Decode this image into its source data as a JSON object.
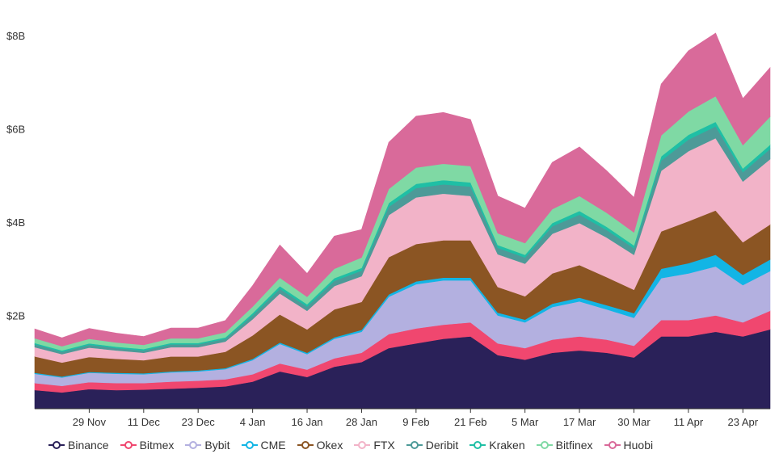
{
  "chart_data": {
    "type": "area",
    "stacked": true,
    "title": "",
    "xlabel": "",
    "ylabel": "",
    "ylim": [
      0,
      8500000000
    ],
    "y_ticks": [
      {
        "value": 2000000000,
        "label": "$2B"
      },
      {
        "value": 4000000000,
        "label": "$4B"
      },
      {
        "value": 6000000000,
        "label": "$6B"
      },
      {
        "value": 8000000000,
        "label": "$8B"
      }
    ],
    "x_ticks": [
      "29 Nov",
      "11 Dec",
      "23 Dec",
      "4 Jan",
      "16 Jan",
      "28 Jan",
      "9 Feb",
      "21 Feb",
      "5 Mar",
      "17 Mar",
      "30 Mar",
      "11 Apr",
      "23 Apr"
    ],
    "x": [
      "17 Nov",
      "23 Nov",
      "29 Nov",
      "5 Dec",
      "11 Dec",
      "17 Dec",
      "23 Dec",
      "29 Dec",
      "4 Jan",
      "10 Jan",
      "16 Jan",
      "22 Jan",
      "28 Jan",
      "3 Feb",
      "9 Feb",
      "15 Feb",
      "21 Feb",
      "27 Feb",
      "5 Mar",
      "11 Mar",
      "17 Mar",
      "23 Mar",
      "30 Mar",
      "5 Apr",
      "11 Apr",
      "17 Apr",
      "23 Apr",
      "29 Apr"
    ],
    "grid": false,
    "legend_position": "bottom",
    "series": [
      {
        "name": "Binance",
        "color": "#2a2159",
        "values": [
          0.4,
          0.35,
          0.42,
          0.4,
          0.41,
          0.43,
          0.45,
          0.48,
          0.58,
          0.8,
          0.68,
          0.9,
          1.0,
          1.3,
          1.4,
          1.5,
          1.55,
          1.15,
          1.05,
          1.2,
          1.25,
          1.2,
          1.1,
          1.55,
          1.55,
          1.65,
          1.55,
          1.7
        ]
      },
      {
        "name": "Bitmex",
        "color": "#f0476f",
        "values": [
          0.15,
          0.14,
          0.15,
          0.15,
          0.14,
          0.15,
          0.15,
          0.15,
          0.16,
          0.17,
          0.16,
          0.18,
          0.2,
          0.3,
          0.32,
          0.3,
          0.3,
          0.25,
          0.25,
          0.28,
          0.3,
          0.28,
          0.25,
          0.35,
          0.35,
          0.35,
          0.3,
          0.4
        ]
      },
      {
        "name": "Bybit",
        "color": "#b3b0e0",
        "values": [
          0.2,
          0.18,
          0.2,
          0.2,
          0.19,
          0.2,
          0.2,
          0.22,
          0.3,
          0.42,
          0.33,
          0.42,
          0.45,
          0.8,
          0.95,
          0.95,
          0.9,
          0.6,
          0.55,
          0.7,
          0.75,
          0.65,
          0.6,
          0.9,
          1.0,
          1.05,
          0.8,
          0.85
        ]
      },
      {
        "name": "CME",
        "color": "#12b5e5",
        "values": [
          0.02,
          0.02,
          0.02,
          0.02,
          0.02,
          0.02,
          0.02,
          0.02,
          0.03,
          0.03,
          0.03,
          0.03,
          0.04,
          0.05,
          0.06,
          0.06,
          0.06,
          0.06,
          0.06,
          0.07,
          0.08,
          0.09,
          0.1,
          0.2,
          0.22,
          0.25,
          0.22,
          0.25
        ]
      },
      {
        "name": "Okex",
        "color": "#8b5523",
        "values": [
          0.35,
          0.3,
          0.32,
          0.3,
          0.28,
          0.32,
          0.3,
          0.35,
          0.5,
          0.6,
          0.5,
          0.6,
          0.6,
          0.8,
          0.8,
          0.8,
          0.8,
          0.55,
          0.5,
          0.65,
          0.7,
          0.6,
          0.5,
          0.8,
          0.9,
          0.95,
          0.7,
          0.75
        ]
      },
      {
        "name": "FTX",
        "color": "#f2b3c8",
        "values": [
          0.2,
          0.18,
          0.2,
          0.18,
          0.16,
          0.2,
          0.2,
          0.22,
          0.35,
          0.45,
          0.4,
          0.5,
          0.55,
          0.9,
          1.0,
          1.0,
          0.95,
          0.7,
          0.7,
          0.85,
          0.9,
          0.85,
          0.75,
          1.3,
          1.5,
          1.55,
          1.3,
          1.4
        ]
      },
      {
        "name": "Deribit",
        "color": "#4d9a98",
        "values": [
          0.06,
          0.05,
          0.06,
          0.05,
          0.05,
          0.06,
          0.06,
          0.06,
          0.08,
          0.1,
          0.09,
          0.11,
          0.12,
          0.18,
          0.2,
          0.2,
          0.2,
          0.14,
          0.13,
          0.16,
          0.18,
          0.16,
          0.14,
          0.22,
          0.25,
          0.25,
          0.2,
          0.22
        ]
      },
      {
        "name": "Kraken",
        "color": "#1fbfa5",
        "values": [
          0.03,
          0.03,
          0.03,
          0.03,
          0.03,
          0.03,
          0.03,
          0.03,
          0.05,
          0.06,
          0.05,
          0.06,
          0.06,
          0.08,
          0.09,
          0.09,
          0.09,
          0.06,
          0.06,
          0.07,
          0.08,
          0.07,
          0.06,
          0.09,
          0.1,
          0.1,
          0.08,
          0.09
        ]
      },
      {
        "name": "Bitfinex",
        "color": "#7fd9a4",
        "values": [
          0.1,
          0.09,
          0.1,
          0.09,
          0.09,
          0.1,
          0.1,
          0.11,
          0.14,
          0.18,
          0.16,
          0.2,
          0.22,
          0.3,
          0.35,
          0.35,
          0.35,
          0.25,
          0.25,
          0.3,
          0.32,
          0.3,
          0.28,
          0.45,
          0.5,
          0.55,
          0.5,
          0.6
        ]
      },
      {
        "name": "Huobi",
        "color": "#d96a9a",
        "values": [
          0.2,
          0.18,
          0.22,
          0.2,
          0.18,
          0.22,
          0.22,
          0.25,
          0.45,
          0.7,
          0.5,
          0.7,
          0.6,
          1.0,
          1.1,
          1.1,
          1.0,
          0.8,
          0.75,
          1.0,
          1.05,
          0.9,
          0.75,
          1.1,
          1.3,
          1.35,
          1.0,
          1.05
        ]
      }
    ]
  }
}
